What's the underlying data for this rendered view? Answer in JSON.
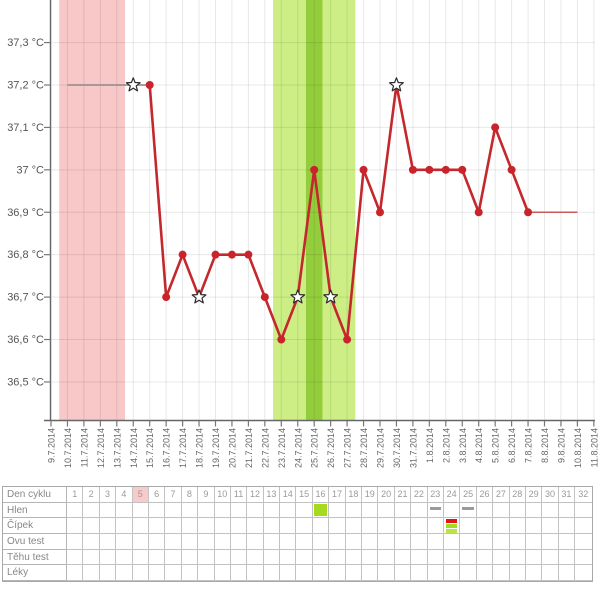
{
  "app": {
    "description": "Basal body temperature cycle chart with cycle-event table"
  },
  "chart_data": {
    "type": "line",
    "title": "",
    "xlabel": "",
    "ylabel": "",
    "unit": "°C",
    "ylim": [
      36.41,
      37.41
    ],
    "grid": true,
    "x_dates": [
      "9.7.2014",
      "10.7.2014",
      "11.7.2014",
      "12.7.2014",
      "13.7.2014",
      "14.7.2014",
      "15.7.2014",
      "16.7.2014",
      "17.7.2014",
      "18.7.2014",
      "19.7.2014",
      "20.7.2014",
      "21.7.2014",
      "22.7.2014",
      "23.7.2014",
      "24.7.2014",
      "25.7.2014",
      "26.7.2014",
      "27.7.2014",
      "28.7.2014",
      "29.7.2014",
      "30.7.2014",
      "31.7.2014",
      "1.8.2014",
      "2.8.2014",
      "3.8.2014",
      "4.8.2014",
      "5.8.2014",
      "6.8.2014",
      "7.8.2014",
      "8.8.2014",
      "9.8.2014",
      "10.8.2014",
      "11.8.2014"
    ],
    "yticks": [
      {
        "label": "37,3 °C",
        "value": 37.3
      },
      {
        "label": "37,2 °C",
        "value": 37.2
      },
      {
        "label": "37,1 °C",
        "value": 37.1
      },
      {
        "label": "37 °C",
        "value": 37.0
      },
      {
        "label": "36,9 °C",
        "value": 36.9
      },
      {
        "label": "36,8 °C",
        "value": 36.8
      },
      {
        "label": "36,7 °C",
        "value": 36.7
      },
      {
        "label": "36,6 °C",
        "value": 36.6
      },
      {
        "label": "36,5 °C",
        "value": 36.5
      }
    ],
    "points": [
      {
        "d": "10.7.2014",
        "t": 37.2,
        "m": "none",
        "line": "pre"
      },
      {
        "d": "14.7.2014",
        "t": 37.2,
        "m": "star",
        "line": "pre"
      },
      {
        "d": "15.7.2014",
        "t": 37.2,
        "m": "dot",
        "line": "main"
      },
      {
        "d": "16.7.2014",
        "t": 36.7,
        "m": "dot",
        "line": "main"
      },
      {
        "d": "17.7.2014",
        "t": 36.8,
        "m": "dot",
        "line": "main"
      },
      {
        "d": "18.7.2014",
        "t": 36.7,
        "m": "star",
        "line": "main"
      },
      {
        "d": "19.7.2014",
        "t": 36.8,
        "m": "dot",
        "line": "main"
      },
      {
        "d": "20.7.2014",
        "t": 36.8,
        "m": "dot",
        "line": "main"
      },
      {
        "d": "21.7.2014",
        "t": 36.8,
        "m": "dot",
        "line": "main"
      },
      {
        "d": "22.7.2014",
        "t": 36.7,
        "m": "dot",
        "line": "main"
      },
      {
        "d": "23.7.2014",
        "t": 36.6,
        "m": "dot",
        "line": "main"
      },
      {
        "d": "24.7.2014",
        "t": 36.7,
        "m": "star",
        "line": "main"
      },
      {
        "d": "25.7.2014",
        "t": 37.0,
        "m": "dot",
        "line": "main"
      },
      {
        "d": "26.7.2014",
        "t": 36.7,
        "m": "star",
        "line": "main"
      },
      {
        "d": "27.7.2014",
        "t": 36.6,
        "m": "dot",
        "line": "main"
      },
      {
        "d": "28.7.2014",
        "t": 37.0,
        "m": "dot",
        "line": "main"
      },
      {
        "d": "29.7.2014",
        "t": 36.9,
        "m": "dot",
        "line": "main"
      },
      {
        "d": "30.7.2014",
        "t": 37.2,
        "m": "star",
        "line": "main"
      },
      {
        "d": "31.7.2014",
        "t": 37.0,
        "m": "dot",
        "line": "main"
      },
      {
        "d": "1.8.2014",
        "t": 37.0,
        "m": "dot",
        "line": "main"
      },
      {
        "d": "2.8.2014",
        "t": 37.0,
        "m": "dot",
        "line": "main"
      },
      {
        "d": "3.8.2014",
        "t": 37.0,
        "m": "dot",
        "line": "main"
      },
      {
        "d": "4.8.2014",
        "t": 36.9,
        "m": "dot",
        "line": "main"
      },
      {
        "d": "5.8.2014",
        "t": 37.1,
        "m": "dot",
        "line": "main"
      },
      {
        "d": "6.8.2014",
        "t": 37.0,
        "m": "dot",
        "line": "main"
      },
      {
        "d": "7.8.2014",
        "t": 36.9,
        "m": "dot",
        "line": "main"
      }
    ],
    "trailing_line": {
      "from": "7.8.2014",
      "to": "10.8.2014",
      "temp": 36.9
    },
    "bands": [
      {
        "name": "menstruation",
        "from": "10.7.2014",
        "to": "13.7.2014",
        "color": "#f8c7c7"
      },
      {
        "name": "fertile-window",
        "from": "23.7.2014",
        "to": "27.7.2014",
        "color": "#ccee85"
      },
      {
        "name": "ovulation-day",
        "from": "25.7.2014",
        "to": "25.7.2014",
        "color": "#94cd3c"
      }
    ],
    "colors": {
      "line_main": "#c4282d",
      "dot": "#c9242b",
      "line_pre": "#a09090",
      "line_trailing": "#c75b5b",
      "star_fill": "#ffffff",
      "star_stroke": "#2b2b2b",
      "grid": "rgba(0,0,0,0.09)",
      "axis": "#666666",
      "tick": "#777777",
      "ylabel_text": "#555555",
      "xlabel_text": "#666666"
    }
  },
  "table": {
    "days": [
      1,
      2,
      3,
      4,
      5,
      6,
      7,
      8,
      9,
      10,
      11,
      12,
      13,
      14,
      15,
      16,
      17,
      18,
      19,
      20,
      21,
      22,
      23,
      24,
      25,
      26,
      27,
      28,
      29,
      30,
      31,
      32
    ],
    "highlighted_day": 5,
    "highlight_color": "#f8caca",
    "rows": [
      {
        "label": "Den cyklu",
        "key": "den_cyklu"
      },
      {
        "label": "Hlen",
        "key": "hlen"
      },
      {
        "label": "Čípek",
        "key": "cipek"
      },
      {
        "label": "Ovu test",
        "key": "ovu_test"
      },
      {
        "label": "Těhu test",
        "key": "tehu_test"
      },
      {
        "label": "Léky",
        "key": "leky"
      }
    ],
    "marks": {
      "hlen": {
        "16": {
          "kind": "fill",
          "color": "#a6da1f"
        },
        "23": {
          "kind": "dash",
          "color": "#9b9b9b"
        },
        "25": {
          "kind": "dash",
          "color": "#9b9b9b"
        }
      },
      "cipek": {
        "24": {
          "kind": "stripes",
          "colors": [
            "#e01616",
            "#a6da1f",
            "#b9e540"
          ]
        }
      }
    }
  }
}
